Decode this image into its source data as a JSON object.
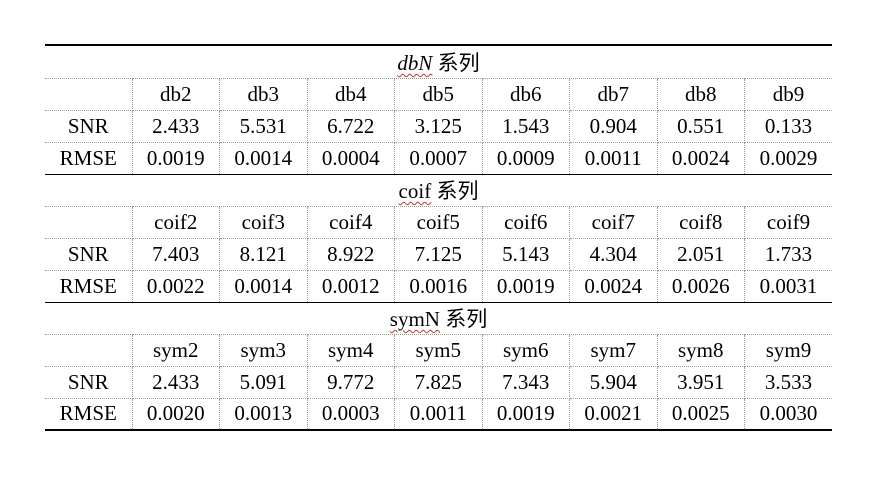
{
  "groups": [
    {
      "title_main": "dbN",
      "title_suffix": "系列",
      "title_italic": true,
      "headers": [
        "db2",
        "db3",
        "db4",
        "db5",
        "db6",
        "db7",
        "db8",
        "db9"
      ],
      "rows": [
        {
          "label": "SNR",
          "values": [
            "2.433",
            "5.531",
            "6.722",
            "3.125",
            "1.543",
            "0.904",
            "0.551",
            "0.133"
          ]
        },
        {
          "label": "RMSE",
          "values": [
            "0.0019",
            "0.0014",
            "0.0004",
            "0.0007",
            "0.0009",
            "0.0011",
            "0.0024",
            "0.0029"
          ]
        }
      ]
    },
    {
      "title_main": "coif",
      "title_suffix": "系列",
      "title_italic": false,
      "headers": [
        "coif2",
        "coif3",
        "coif4",
        "coif5",
        "coif6",
        "coif7",
        "coif8",
        "coif9"
      ],
      "rows": [
        {
          "label": "SNR",
          "values": [
            "7.403",
            "8.121",
            "8.922",
            "7.125",
            "5.143",
            "4.304",
            "2.051",
            "1.733"
          ]
        },
        {
          "label": "RMSE",
          "values": [
            "0.0022",
            "0.0014",
            "0.0012",
            "0.0016",
            "0.0019",
            "0.0024",
            "0.0026",
            "0.0031"
          ]
        }
      ]
    },
    {
      "title_main": "symN",
      "title_suffix": "系列",
      "title_italic": false,
      "headers": [
        "sym2",
        "sym3",
        "sym4",
        "sym5",
        "sym6",
        "sym7",
        "sym8",
        "sym9"
      ],
      "rows": [
        {
          "label": "SNR",
          "values": [
            "2.433",
            "5.091",
            "9.772",
            "7.825",
            "7.343",
            "5.904",
            "3.951",
            "3.533"
          ]
        },
        {
          "label": "RMSE",
          "values": [
            "0.0020",
            "0.0013",
            "0.0003",
            "0.0011",
            "0.0019",
            "0.0021",
            "0.0025",
            "0.0030"
          ]
        }
      ]
    }
  ]
}
